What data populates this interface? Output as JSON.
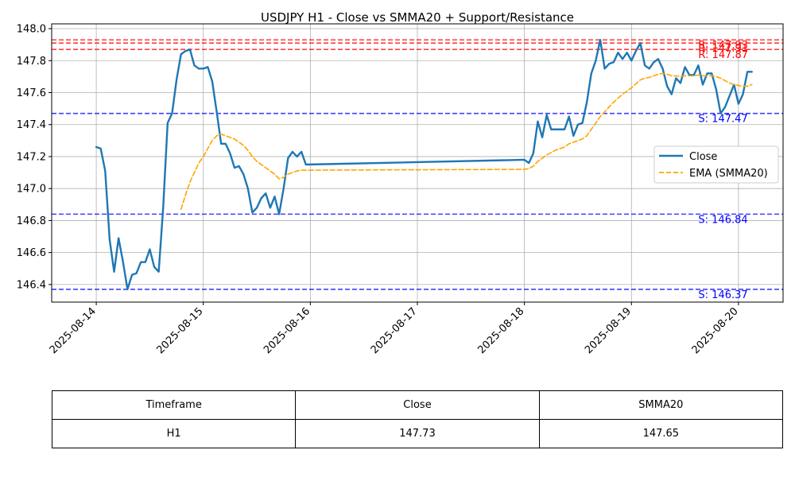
{
  "chart_data": {
    "type": "line",
    "title": "USDJPY H1 - Close vs SMMA20 + Support/Resistance",
    "xlabel": "",
    "ylabel": "",
    "ylim": [
      146.29,
      148.03
    ],
    "xlim": [
      "2025-08-13 14:00",
      "2025-08-20 10:00"
    ],
    "x_ticks": [
      "2025-08-14",
      "2025-08-15",
      "2025-08-16",
      "2025-08-17",
      "2025-08-18",
      "2025-08-19",
      "2025-08-20"
    ],
    "y_ticks": [
      "146.4",
      "146.6",
      "146.8",
      "147.0",
      "147.2",
      "147.4",
      "147.6",
      "147.8",
      "148.0"
    ],
    "grid": true,
    "legend_position": "center-right",
    "series": [
      {
        "name": "Close",
        "color": "#1f77b4",
        "style": "solid",
        "points": [
          [
            "2025-08-14 00:00",
            147.26
          ],
          [
            "2025-08-14 01:00",
            147.25
          ],
          [
            "2025-08-14 02:00",
            147.11
          ],
          [
            "2025-08-14 03:00",
            146.68
          ],
          [
            "2025-08-14 04:00",
            146.48
          ],
          [
            "2025-08-14 05:00",
            146.69
          ],
          [
            "2025-08-14 06:00",
            146.54
          ],
          [
            "2025-08-14 07:00",
            146.37
          ],
          [
            "2025-08-14 08:00",
            146.46
          ],
          [
            "2025-08-14 09:00",
            146.47
          ],
          [
            "2025-08-14 10:00",
            146.54
          ],
          [
            "2025-08-14 11:00",
            146.54
          ],
          [
            "2025-08-14 12:00",
            146.62
          ],
          [
            "2025-08-14 13:00",
            146.51
          ],
          [
            "2025-08-14 14:00",
            146.48
          ],
          [
            "2025-08-14 15:00",
            146.88
          ],
          [
            "2025-08-14 16:00",
            147.41
          ],
          [
            "2025-08-14 17:00",
            147.47
          ],
          [
            "2025-08-14 18:00",
            147.68
          ],
          [
            "2025-08-14 19:00",
            147.84
          ],
          [
            "2025-08-14 20:00",
            147.86
          ],
          [
            "2025-08-14 21:00",
            147.87
          ],
          [
            "2025-08-14 22:00",
            147.77
          ],
          [
            "2025-08-14 23:00",
            147.75
          ],
          [
            "2025-08-15 00:00",
            147.75
          ],
          [
            "2025-08-15 01:00",
            147.76
          ],
          [
            "2025-08-15 02:00",
            147.67
          ],
          [
            "2025-08-15 03:00",
            147.48
          ],
          [
            "2025-08-15 04:00",
            147.28
          ],
          [
            "2025-08-15 05:00",
            147.28
          ],
          [
            "2025-08-15 06:00",
            147.22
          ],
          [
            "2025-08-15 07:00",
            147.13
          ],
          [
            "2025-08-15 08:00",
            147.14
          ],
          [
            "2025-08-15 09:00",
            147.09
          ],
          [
            "2025-08-15 10:00",
            147.0
          ],
          [
            "2025-08-15 11:00",
            146.85
          ],
          [
            "2025-08-15 12:00",
            146.88
          ],
          [
            "2025-08-15 13:00",
            146.94
          ],
          [
            "2025-08-15 14:00",
            146.97
          ],
          [
            "2025-08-15 15:00",
            146.88
          ],
          [
            "2025-08-15 16:00",
            146.95
          ],
          [
            "2025-08-15 17:00",
            146.84
          ],
          [
            "2025-08-15 18:00",
            147.0
          ],
          [
            "2025-08-15 19:00",
            147.19
          ],
          [
            "2025-08-15 20:00",
            147.23
          ],
          [
            "2025-08-15 21:00",
            147.2
          ],
          [
            "2025-08-15 22:00",
            147.23
          ],
          [
            "2025-08-15 23:00",
            147.15
          ],
          [
            "2025-08-18 00:00",
            147.18
          ],
          [
            "2025-08-18 01:00",
            147.16
          ],
          [
            "2025-08-18 02:00",
            147.22
          ],
          [
            "2025-08-18 03:00",
            147.42
          ],
          [
            "2025-08-18 04:00",
            147.32
          ],
          [
            "2025-08-18 05:00",
            147.46
          ],
          [
            "2025-08-18 06:00",
            147.37
          ],
          [
            "2025-08-18 07:00",
            147.37
          ],
          [
            "2025-08-18 08:00",
            147.37
          ],
          [
            "2025-08-18 09:00",
            147.37
          ],
          [
            "2025-08-18 10:00",
            147.45
          ],
          [
            "2025-08-18 11:00",
            147.33
          ],
          [
            "2025-08-18 12:00",
            147.4
          ],
          [
            "2025-08-18 13:00",
            147.41
          ],
          [
            "2025-08-18 14:00",
            147.54
          ],
          [
            "2025-08-18 15:00",
            147.72
          ],
          [
            "2025-08-18 16:00",
            147.8
          ],
          [
            "2025-08-18 17:00",
            147.93
          ],
          [
            "2025-08-18 18:00",
            147.75
          ],
          [
            "2025-08-18 19:00",
            147.78
          ],
          [
            "2025-08-18 20:00",
            147.79
          ],
          [
            "2025-08-18 21:00",
            147.85
          ],
          [
            "2025-08-18 22:00",
            147.81
          ],
          [
            "2025-08-18 23:00",
            147.85
          ],
          [
            "2025-08-19 00:00",
            147.8
          ],
          [
            "2025-08-19 01:00",
            147.86
          ],
          [
            "2025-08-19 02:00",
            147.91
          ],
          [
            "2025-08-19 03:00",
            147.77
          ],
          [
            "2025-08-19 04:00",
            147.75
          ],
          [
            "2025-08-19 05:00",
            147.79
          ],
          [
            "2025-08-19 06:00",
            147.81
          ],
          [
            "2025-08-19 07:00",
            147.75
          ],
          [
            "2025-08-19 08:00",
            147.64
          ],
          [
            "2025-08-19 09:00",
            147.59
          ],
          [
            "2025-08-19 10:00",
            147.69
          ],
          [
            "2025-08-19 11:00",
            147.66
          ],
          [
            "2025-08-19 12:00",
            147.76
          ],
          [
            "2025-08-19 13:00",
            147.71
          ],
          [
            "2025-08-19 14:00",
            147.71
          ],
          [
            "2025-08-19 15:00",
            147.77
          ],
          [
            "2025-08-19 16:00",
            147.65
          ],
          [
            "2025-08-19 17:00",
            147.72
          ],
          [
            "2025-08-19 18:00",
            147.72
          ],
          [
            "2025-08-19 19:00",
            147.62
          ],
          [
            "2025-08-19 20:00",
            147.47
          ],
          [
            "2025-08-19 21:00",
            147.51
          ],
          [
            "2025-08-19 22:00",
            147.58
          ],
          [
            "2025-08-19 23:00",
            147.65
          ],
          [
            "2025-08-20 00:00",
            147.53
          ],
          [
            "2025-08-20 01:00",
            147.59
          ],
          [
            "2025-08-20 02:00",
            147.73
          ],
          [
            "2025-08-20 03:00",
            147.73
          ]
        ]
      },
      {
        "name": "EMA (SMMA20)",
        "color": "#ffa500",
        "style": "dashed",
        "points": [
          [
            "2025-08-14 19:00",
            146.87
          ],
          [
            "2025-08-14 20:00",
            146.96
          ],
          [
            "2025-08-14 21:00",
            147.04
          ],
          [
            "2025-08-14 22:00",
            147.1
          ],
          [
            "2025-08-14 23:00",
            147.16
          ],
          [
            "2025-08-15 00:00",
            147.2
          ],
          [
            "2025-08-15 01:00",
            147.25
          ],
          [
            "2025-08-15 02:00",
            147.3
          ],
          [
            "2025-08-15 03:00",
            147.33
          ],
          [
            "2025-08-15 04:00",
            147.34
          ],
          [
            "2025-08-15 05:00",
            147.33
          ],
          [
            "2025-08-15 06:00",
            147.32
          ],
          [
            "2025-08-15 07:00",
            147.31
          ],
          [
            "2025-08-15 08:00",
            147.29
          ],
          [
            "2025-08-15 09:00",
            147.27
          ],
          [
            "2025-08-15 10:00",
            147.24
          ],
          [
            "2025-08-15 11:00",
            147.2
          ],
          [
            "2025-08-15 12:00",
            147.17
          ],
          [
            "2025-08-15 13:00",
            147.15
          ],
          [
            "2025-08-15 14:00",
            147.13
          ],
          [
            "2025-08-15 15:00",
            147.11
          ],
          [
            "2025-08-15 16:00",
            147.09
          ],
          [
            "2025-08-15 17:00",
            147.06
          ],
          [
            "2025-08-15 18:00",
            147.07
          ],
          [
            "2025-08-15 19:00",
            147.09
          ],
          [
            "2025-08-15 20:00",
            147.1
          ],
          [
            "2025-08-15 21:00",
            147.11
          ],
          [
            "2025-08-15 22:00",
            147.115
          ],
          [
            "2025-08-15 23:00",
            147.115
          ],
          [
            "2025-08-18 00:00",
            147.12
          ],
          [
            "2025-08-18 01:00",
            147.125
          ],
          [
            "2025-08-18 02:00",
            147.14
          ],
          [
            "2025-08-18 03:00",
            147.17
          ],
          [
            "2025-08-18 04:00",
            147.19
          ],
          [
            "2025-08-18 05:00",
            147.21
          ],
          [
            "2025-08-18 06:00",
            147.225
          ],
          [
            "2025-08-18 07:00",
            147.24
          ],
          [
            "2025-08-18 08:00",
            147.25
          ],
          [
            "2025-08-18 09:00",
            147.26
          ],
          [
            "2025-08-18 10:00",
            147.28
          ],
          [
            "2025-08-18 11:00",
            147.29
          ],
          [
            "2025-08-18 12:00",
            147.3
          ],
          [
            "2025-08-18 13:00",
            147.31
          ],
          [
            "2025-08-18 14:00",
            147.33
          ],
          [
            "2025-08-18 15:00",
            147.37
          ],
          [
            "2025-08-18 16:00",
            147.41
          ],
          [
            "2025-08-18 17:00",
            147.45
          ],
          [
            "2025-08-18 18:00",
            147.48
          ],
          [
            "2025-08-18 19:00",
            147.51
          ],
          [
            "2025-08-18 20:00",
            147.54
          ],
          [
            "2025-08-18 21:00",
            147.565
          ],
          [
            "2025-08-18 22:00",
            147.59
          ],
          [
            "2025-08-18 23:00",
            147.61
          ],
          [
            "2025-08-19 00:00",
            147.63
          ],
          [
            "2025-08-19 01:00",
            147.655
          ],
          [
            "2025-08-19 02:00",
            147.68
          ],
          [
            "2025-08-19 03:00",
            147.69
          ],
          [
            "2025-08-19 04:00",
            147.695
          ],
          [
            "2025-08-19 05:00",
            147.705
          ],
          [
            "2025-08-19 06:00",
            147.715
          ],
          [
            "2025-08-19 07:00",
            147.72
          ],
          [
            "2025-08-19 08:00",
            147.715
          ],
          [
            "2025-08-19 09:00",
            147.705
          ],
          [
            "2025-08-19 10:00",
            147.705
          ],
          [
            "2025-08-19 11:00",
            147.7
          ],
          [
            "2025-08-19 12:00",
            147.705
          ],
          [
            "2025-08-19 13:00",
            147.705
          ],
          [
            "2025-08-19 14:00",
            147.705
          ],
          [
            "2025-08-19 15:00",
            147.71
          ],
          [
            "2025-08-19 16:00",
            147.705
          ],
          [
            "2025-08-19 17:00",
            147.705
          ],
          [
            "2025-08-19 18:00",
            147.705
          ],
          [
            "2025-08-19 19:00",
            147.7
          ],
          [
            "2025-08-19 20:00",
            147.69
          ],
          [
            "2025-08-19 21:00",
            147.675
          ],
          [
            "2025-08-19 22:00",
            147.66
          ],
          [
            "2025-08-19 23:00",
            147.65
          ],
          [
            "2025-08-20 00:00",
            147.645
          ],
          [
            "2025-08-20 01:00",
            147.64
          ],
          [
            "2025-08-20 02:00",
            147.64
          ],
          [
            "2025-08-20 03:00",
            147.65
          ]
        ]
      }
    ],
    "resistance": [
      {
        "label": "R: 147.93",
        "value": 147.93
      },
      {
        "label": "R: 147.91",
        "value": 147.91
      },
      {
        "label": "R: 147.87",
        "value": 147.87
      }
    ],
    "support": [
      {
        "label": "S: 147.47",
        "value": 147.47
      },
      {
        "label": "S: 146.84",
        "value": 146.84
      },
      {
        "label": "S: 146.37",
        "value": 146.37
      }
    ],
    "level_colors": {
      "resistance": "#ff0000",
      "support": "#0000ff"
    }
  },
  "table": {
    "headers": [
      "Timeframe",
      "Close",
      "SMMA20"
    ],
    "rows": [
      [
        "H1",
        "147.73",
        "147.65"
      ]
    ]
  }
}
